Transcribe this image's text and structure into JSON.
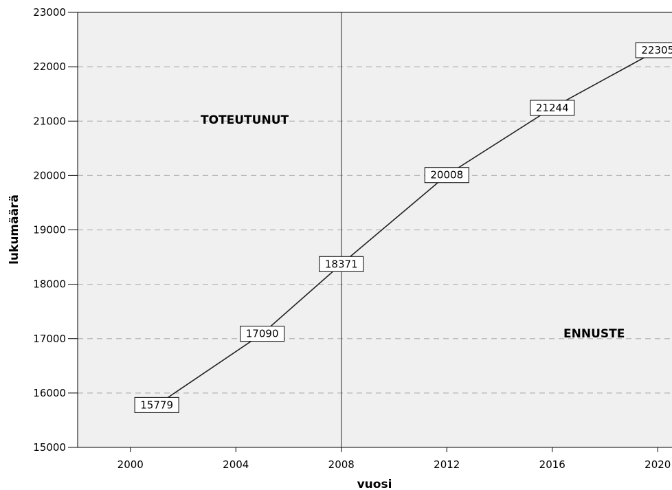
{
  "chart_data": {
    "type": "line",
    "title": "",
    "xlabel": "vuosi",
    "ylabel": "lukumäärä",
    "xlim": [
      1998,
      2022
    ],
    "ylim": [
      15000,
      23000
    ],
    "x_ticks": [
      2000,
      2004,
      2008,
      2012,
      2016,
      2020
    ],
    "y_ticks": [
      15000,
      16000,
      17000,
      18000,
      19000,
      20000,
      21000,
      22000,
      23000
    ],
    "grid": "horizontal dashed",
    "series": [
      {
        "x": [
          2001,
          2005,
          2008,
          2012,
          2016,
          2020
        ],
        "values": [
          15779,
          17090,
          18371,
          20008,
          21244,
          22305
        ],
        "data_labels": [
          "15779",
          "17090",
          "18371",
          "20008",
          "21244",
          "22305"
        ]
      }
    ],
    "reference_line": {
      "x": 2008
    },
    "annotations": [
      "TOTEUTUNUT",
      "ENNUSTE"
    ],
    "colors": {
      "plot_background": "#f0f0f0",
      "line": "#222222",
      "grid": "#b4b4b4",
      "reference_line": "#555555"
    }
  }
}
